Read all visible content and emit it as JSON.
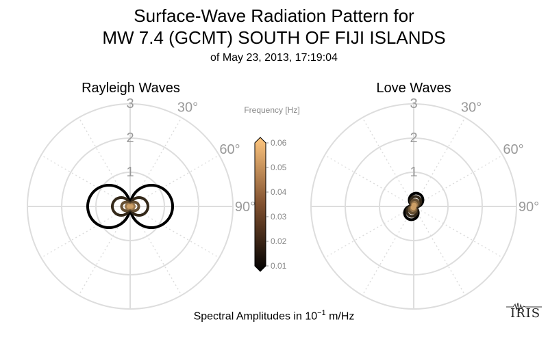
{
  "header": {
    "title_line1": "Surface-Wave Radiation Pattern for",
    "title_line2": "MW 7.4 (GCMT) SOUTH OF FIJI ISLANDS",
    "subtitle": "of May 23, 2013, 17:19:04"
  },
  "footer": {
    "label_prefix": "Spectral Amplitudes in 10",
    "label_exponent": "−1",
    "label_suffix": " m/Hz"
  },
  "logo": {
    "text": "IRIS"
  },
  "chart_data": [
    {
      "type": "polar-line",
      "title": "Rayleigh Waves",
      "radial_ticks": [
        "1",
        "2",
        "3"
      ],
      "angle_ticks": [
        "30°",
        "60°",
        "90°"
      ],
      "rlim": [
        0,
        3
      ],
      "grid": true,
      "series": [
        {
          "frequency": 0.01,
          "lobes": 2,
          "amplitude": 1.24,
          "rotation_deg": 90,
          "min_ratio": 0.0
        },
        {
          "frequency": 0.02,
          "lobes": 2,
          "amplitude": 0.52,
          "rotation_deg": 90,
          "min_ratio": 0.0
        },
        {
          "frequency": 0.03,
          "lobes": 2,
          "amplitude": 0.25,
          "rotation_deg": 90,
          "min_ratio": 0.0
        },
        {
          "frequency": 0.04,
          "lobes": 2,
          "amplitude": 0.12,
          "rotation_deg": 90,
          "min_ratio": 0.0
        },
        {
          "frequency": 0.05,
          "lobes": 2,
          "amplitude": 0.06,
          "rotation_deg": 90,
          "min_ratio": 0.0
        }
      ]
    },
    {
      "type": "polar-line",
      "title": "Love Waves",
      "radial_ticks": [
        "1",
        "2",
        "3"
      ],
      "angle_ticks": [
        "30°",
        "60°",
        "90°"
      ],
      "rlim": [
        0,
        3
      ],
      "grid": true,
      "series": [
        {
          "frequency": 0.01,
          "lobes": 2,
          "amplitude": 0.4,
          "rotation_deg": 20,
          "min_ratio": 0.0
        },
        {
          "frequency": 0.02,
          "lobes": 2,
          "amplitude": 0.3,
          "rotation_deg": 20,
          "min_ratio": 0.0
        },
        {
          "frequency": 0.03,
          "lobes": 2,
          "amplitude": 0.2,
          "rotation_deg": 20,
          "min_ratio": 0.0
        },
        {
          "frequency": 0.04,
          "lobes": 2,
          "amplitude": 0.12,
          "rotation_deg": 20,
          "min_ratio": 0.0
        },
        {
          "frequency": 0.05,
          "lobes": 2,
          "amplitude": 0.07,
          "rotation_deg": 20,
          "min_ratio": 0.0
        }
      ]
    }
  ],
  "colorbar": {
    "label": "Frequency [Hz]",
    "ticks": [
      "0.06",
      "0.05",
      "0.04",
      "0.03",
      "0.02",
      "0.01"
    ],
    "range": [
      0.01,
      0.06
    ],
    "colormap": "copper",
    "colors": [
      "#000000",
      "#ffc77f"
    ]
  },
  "colors": {
    "grid": "#dddddd",
    "tick_text": "#999999"
  }
}
